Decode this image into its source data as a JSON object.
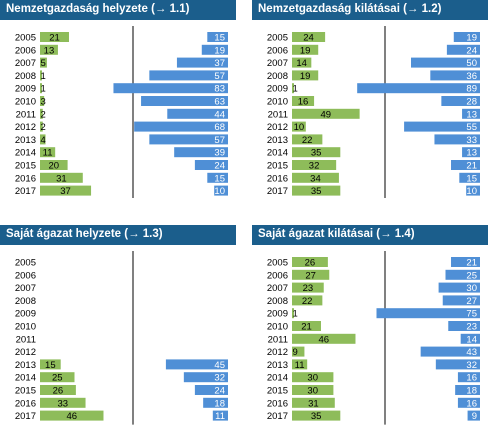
{
  "colors": {
    "header": "#1b5e8c",
    "positive": "#8ebc5a",
    "negative": "#4f8fd6",
    "axis": "#000000"
  },
  "chart_data": [
    {
      "type": "bar",
      "title": "Nemzetgazdaság helyzete (→ 1.1)",
      "categories": [
        "2005",
        "2006",
        "2007",
        "2008",
        "2009",
        "2010",
        "2011",
        "2012",
        "2013",
        "2014",
        "2015",
        "2016",
        "2017"
      ],
      "series": [
        {
          "values": [
            21,
            13,
            5,
            1,
            1,
            3,
            2,
            2,
            4,
            11,
            20,
            31,
            37
          ]
        },
        {
          "values": [
            15,
            19,
            37,
            57,
            83,
            63,
            44,
            68,
            57,
            39,
            24,
            15,
            10
          ]
        }
      ]
    },
    {
      "type": "bar",
      "title": "Nemzetgazdaság kilátásai (→ 1.2)",
      "categories": [
        "2005",
        "2006",
        "2007",
        "2008",
        "2009",
        "2010",
        "2011",
        "2012",
        "2013",
        "2014",
        "2015",
        "2016",
        "2017"
      ],
      "series": [
        {
          "values": [
            24,
            19,
            14,
            19,
            1,
            16,
            49,
            10,
            22,
            35,
            32,
            34,
            35
          ]
        },
        {
          "values": [
            19,
            24,
            50,
            36,
            89,
            28,
            13,
            55,
            33,
            13,
            21,
            15,
            10
          ]
        }
      ]
    },
    {
      "type": "bar",
      "title": "Saját ágazat helyzete (→ 1.3)",
      "categories": [
        "2005",
        "2006",
        "2007",
        "2008",
        "2009",
        "2010",
        "2011",
        "2012",
        "2013",
        "2014",
        "2015",
        "2016",
        "2017"
      ],
      "series": [
        {
          "values": [
            null,
            null,
            null,
            null,
            null,
            null,
            null,
            null,
            15,
            25,
            26,
            33,
            46
          ]
        },
        {
          "values": [
            null,
            null,
            null,
            null,
            null,
            null,
            null,
            null,
            45,
            32,
            24,
            18,
            11
          ]
        }
      ]
    },
    {
      "type": "bar",
      "title": "Saját ágazat kilátásai (→ 1.4)",
      "categories": [
        "2005",
        "2006",
        "2007",
        "2008",
        "2009",
        "2010",
        "2011",
        "2012",
        "2013",
        "2014",
        "2015",
        "2016",
        "2017"
      ],
      "series": [
        {
          "values": [
            26,
            27,
            23,
            22,
            1,
            21,
            46,
            9,
            11,
            30,
            30,
            31,
            35
          ]
        },
        {
          "values": [
            21,
            25,
            30,
            27,
            75,
            23,
            14,
            43,
            32,
            16,
            18,
            16,
            9
          ]
        }
      ]
    }
  ]
}
